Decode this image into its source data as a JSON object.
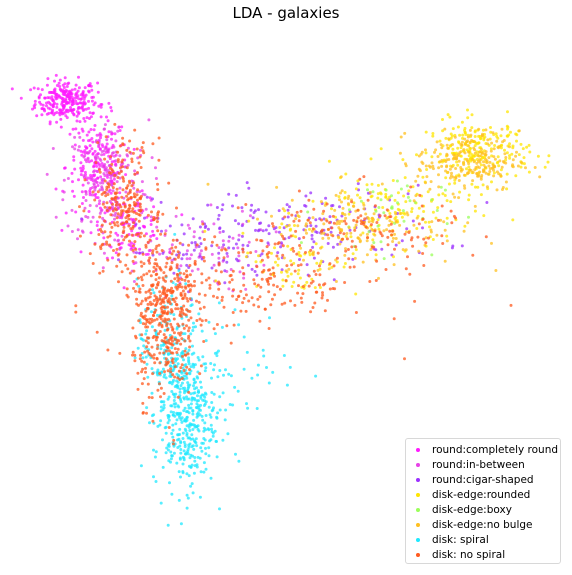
{
  "chart_data": {
    "type": "scatter",
    "title": "LDA - galaxies",
    "xlabel": "",
    "ylabel": "",
    "axes_visible": false,
    "grid": false,
    "legend_position": "lower-right",
    "xlim": [
      0,
      100
    ],
    "ylim": [
      0,
      100
    ],
    "series": [
      {
        "name": "round:completely round",
        "color": "#ff1aff",
        "clusters": [
          {
            "cx": 7,
            "cy": 88,
            "sx": 3,
            "sy": 2,
            "n": 260
          },
          {
            "cx": 13,
            "cy": 75,
            "sx": 3,
            "sy": 5,
            "n": 200
          },
          {
            "cx": 20,
            "cy": 63,
            "sx": 3,
            "sy": 3,
            "n": 90
          }
        ]
      },
      {
        "name": "round:in-between",
        "color": "#e642e6",
        "clusters": [
          {
            "cx": 15,
            "cy": 72,
            "sx": 4,
            "sy": 6,
            "n": 200
          },
          {
            "cx": 30,
            "cy": 58,
            "sx": 8,
            "sy": 4,
            "n": 90
          }
        ]
      },
      {
        "name": "round:cigar-shaped",
        "color": "#9b30ff",
        "clusters": [
          {
            "cx": 52,
            "cy": 63,
            "sx": 14,
            "sy": 4,
            "n": 150
          },
          {
            "cx": 35,
            "cy": 58,
            "sx": 8,
            "sy": 3,
            "n": 60
          }
        ]
      },
      {
        "name": "disk-edge:rounded",
        "color": "#ffe500",
        "clusters": [
          {
            "cx": 87,
            "cy": 78,
            "sx": 5,
            "sy": 3,
            "n": 220
          },
          {
            "cx": 70,
            "cy": 66,
            "sx": 8,
            "sy": 4,
            "n": 130
          },
          {
            "cx": 52,
            "cy": 57,
            "sx": 6,
            "sy": 4,
            "n": 70
          }
        ]
      },
      {
        "name": "disk-edge:boxy",
        "color": "#9aff5a",
        "clusters": [
          {
            "cx": 68,
            "cy": 66,
            "sx": 6,
            "sy": 4,
            "n": 40
          }
        ]
      },
      {
        "name": "disk-edge:no bulge",
        "color": "#ffc020",
        "clusters": [
          {
            "cx": 85,
            "cy": 76,
            "sx": 5,
            "sy": 3,
            "n": 220
          },
          {
            "cx": 65,
            "cy": 63,
            "sx": 9,
            "sy": 4,
            "n": 160
          }
        ]
      },
      {
        "name": "disk: spiral",
        "color": "#1fe8ff",
        "clusters": [
          {
            "cx": 30,
            "cy": 25,
            "sx": 3,
            "sy": 7,
            "n": 380
          },
          {
            "cx": 27,
            "cy": 40,
            "sx": 3,
            "sy": 6,
            "n": 160
          },
          {
            "cx": 40,
            "cy": 35,
            "sx": 6,
            "sy": 6,
            "n": 60
          }
        ]
      },
      {
        "name": "disk: no spiral",
        "color": "#ff5a1f",
        "clusters": [
          {
            "cx": 26,
            "cy": 45,
            "sx": 3,
            "sy": 8,
            "n": 420
          },
          {
            "cx": 18,
            "cy": 68,
            "sx": 3,
            "sy": 6,
            "n": 240
          },
          {
            "cx": 42,
            "cy": 52,
            "sx": 12,
            "sy": 5,
            "n": 220
          },
          {
            "cx": 63,
            "cy": 62,
            "sx": 10,
            "sy": 4,
            "n": 120
          }
        ]
      }
    ]
  }
}
